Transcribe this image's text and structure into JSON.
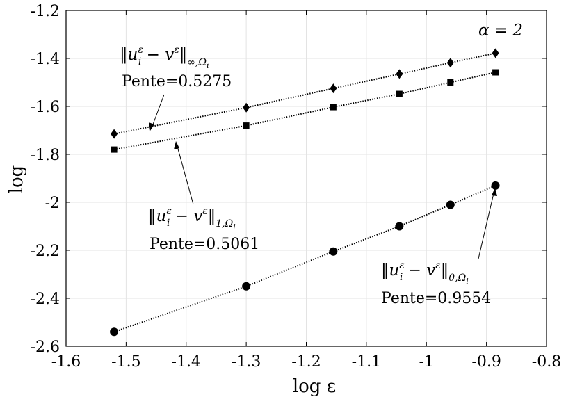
{
  "chart_data": {
    "type": "line",
    "xlabel": "log ε",
    "ylabel": "log",
    "xlim": [
      -1.6,
      -0.8
    ],
    "ylim": [
      -2.6,
      -1.2
    ],
    "x_ticks": [
      "-1.6",
      "-1.5",
      "-1.4",
      "-1.3",
      "-1.2",
      "-1.1",
      "-1",
      "-0.9",
      "-0.8"
    ],
    "y_ticks": [
      "-1.2",
      "-1.4",
      "-1.6",
      "-1.8",
      "-2",
      "-2.2",
      "-2.4",
      "-2.6"
    ],
    "x_tick_values": [
      -1.6,
      -1.5,
      -1.4,
      -1.3,
      -1.2,
      -1.1,
      -1.0,
      -0.9,
      -0.8
    ],
    "y_tick_values": [
      -1.2,
      -1.4,
      -1.6,
      -1.8,
      -2.0,
      -2.2,
      -2.4,
      -2.6
    ],
    "grid": true,
    "x": [
      -1.52,
      -1.3,
      -1.155,
      -1.045,
      -0.96,
      -0.885
    ],
    "series": [
      {
        "marker": "diamond",
        "values": [
          -1.715,
          -1.605,
          -1.525,
          -1.465,
          -1.418,
          -1.378
        ]
      },
      {
        "marker": "square",
        "values": [
          -1.78,
          -1.68,
          -1.603,
          -1.548,
          -1.5,
          -1.458
        ]
      },
      {
        "marker": "circle",
        "values": [
          -2.54,
          -2.35,
          -2.205,
          -2.1,
          -2.01,
          -1.93
        ]
      }
    ],
    "annotations": {
      "alpha": "α = 2",
      "inf_norm": {
        "norm_text": "‖u",
        "sup": "ε",
        "sub": "i",
        "minus": " − v",
        "sup2": "ε",
        "close": "‖",
        "sub2": "∞,Ω",
        "sub3": "i",
        "slope": "Pente=0.5275"
      },
      "one_norm": {
        "norm_text": "‖u",
        "sup": "ε",
        "sub": "i",
        "minus": " − v",
        "sup2": "ε",
        "close": "‖",
        "sub2": "1,Ω",
        "sub3": "i",
        "slope": "Pente=0.5061"
      },
      "zero_norm": {
        "norm_text": "‖u",
        "sup": "ε",
        "sub": "i",
        "minus": " − v",
        "sup2": "ε",
        "close": "‖",
        "sub2": "0,Ω",
        "sub3": "i",
        "slope": "Pente=0.9554"
      }
    }
  }
}
